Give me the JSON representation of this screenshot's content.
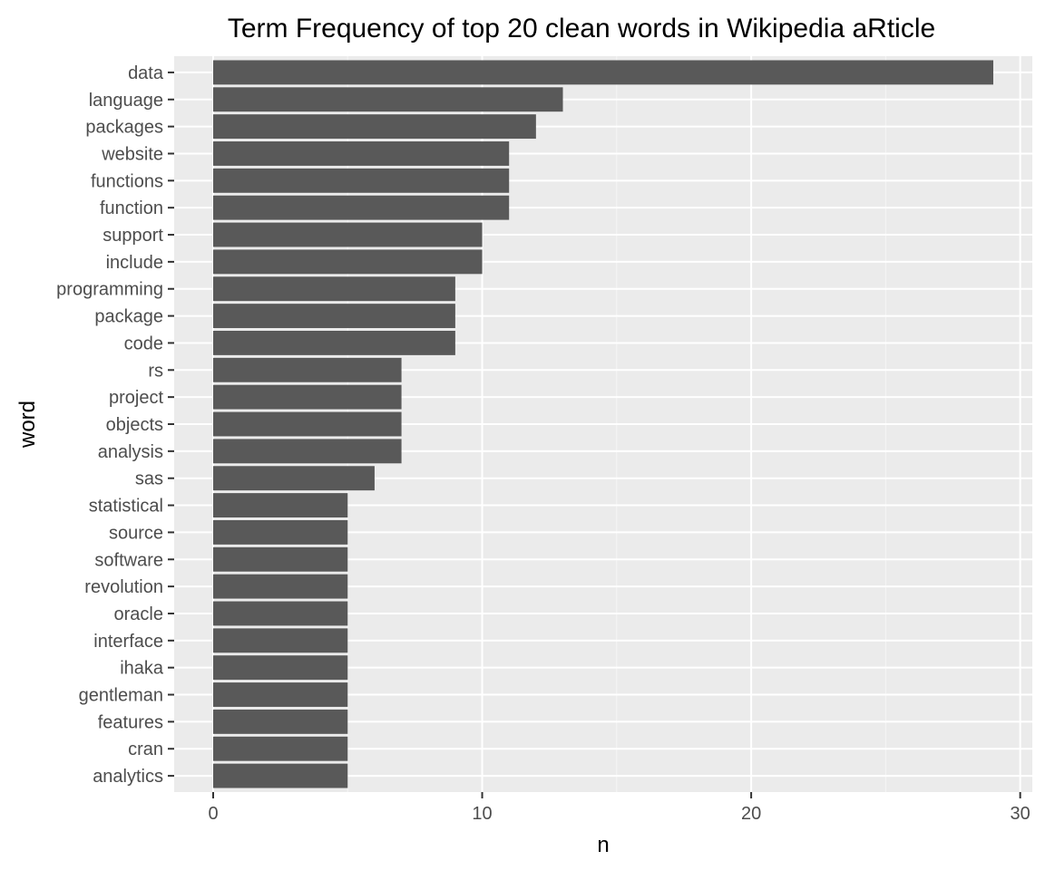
{
  "chart_data": {
    "type": "bar",
    "orientation": "horizontal",
    "title": "Term Frequency of top 20 clean words in Wikipedia aRticle",
    "xlabel": "n",
    "ylabel": "word",
    "categories": [
      "data",
      "language",
      "packages",
      "website",
      "functions",
      "function",
      "support",
      "include",
      "programming",
      "package",
      "code",
      "rs",
      "project",
      "objects",
      "analysis",
      "sas",
      "statistical",
      "source",
      "software",
      "revolution",
      "oracle",
      "interface",
      "ihaka",
      "gentleman",
      "features",
      "cran",
      "analytics"
    ],
    "values": [
      29,
      13,
      12,
      11,
      11,
      11,
      10,
      10,
      9,
      9,
      9,
      7,
      7,
      7,
      7,
      6,
      5,
      5,
      5,
      5,
      5,
      5,
      5,
      5,
      5,
      5,
      5
    ],
    "xlim": [
      -1.45,
      30.45
    ],
    "x_ticks": [
      0,
      10,
      20,
      30
    ],
    "x_minor_ticks": [
      5,
      15,
      25
    ],
    "grid": true,
    "legend": "none"
  },
  "colors": {
    "panel_background": "#ebebeb",
    "grid_major": "#ffffff",
    "grid_minor": "#f5f5f5",
    "bar_fill": "#595959",
    "tick_mark": "#333333",
    "tick_label": "#4d4d4d"
  }
}
